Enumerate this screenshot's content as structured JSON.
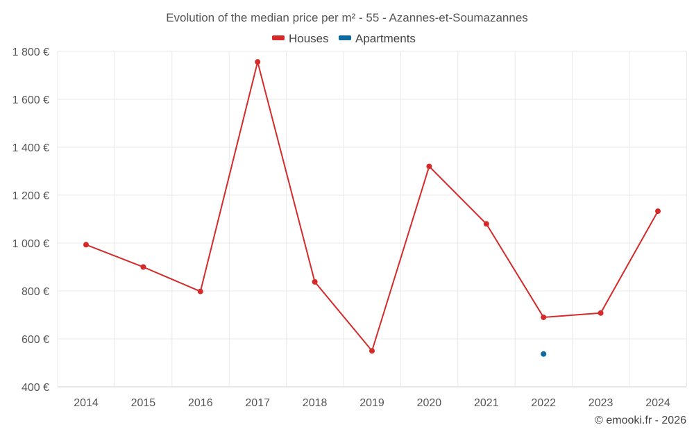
{
  "chart_data": {
    "type": "line",
    "title": "Evolution of the median price per m² - 55 - Azannes-et-Soumazannes",
    "categories": [
      "2014",
      "2015",
      "2016",
      "2017",
      "2018",
      "2019",
      "2020",
      "2021",
      "2022",
      "2023",
      "2024"
    ],
    "series": [
      {
        "name": "Houses",
        "color": "#d42a2a",
        "values": [
          993,
          900,
          798,
          1756,
          838,
          550,
          1320,
          1080,
          690,
          708,
          1133
        ]
      },
      {
        "name": "Apartments",
        "color": "#0b6aa2",
        "values": [
          null,
          null,
          null,
          null,
          null,
          null,
          null,
          null,
          537,
          null,
          null
        ]
      }
    ],
    "ylim": [
      400,
      1800
    ],
    "yticks": [
      400,
      600,
      800,
      1000,
      1200,
      1400,
      1600,
      1800
    ],
    "ytick_labels": [
      "400 €",
      "600 €",
      "800 €",
      "1 000 €",
      "1 200 €",
      "1 400 €",
      "1 600 €",
      "1 800 €"
    ],
    "xlabel": "",
    "ylabel": "",
    "grid": true,
    "legend_position": "top-center"
  },
  "credit": "© emooki.fr - 2026"
}
